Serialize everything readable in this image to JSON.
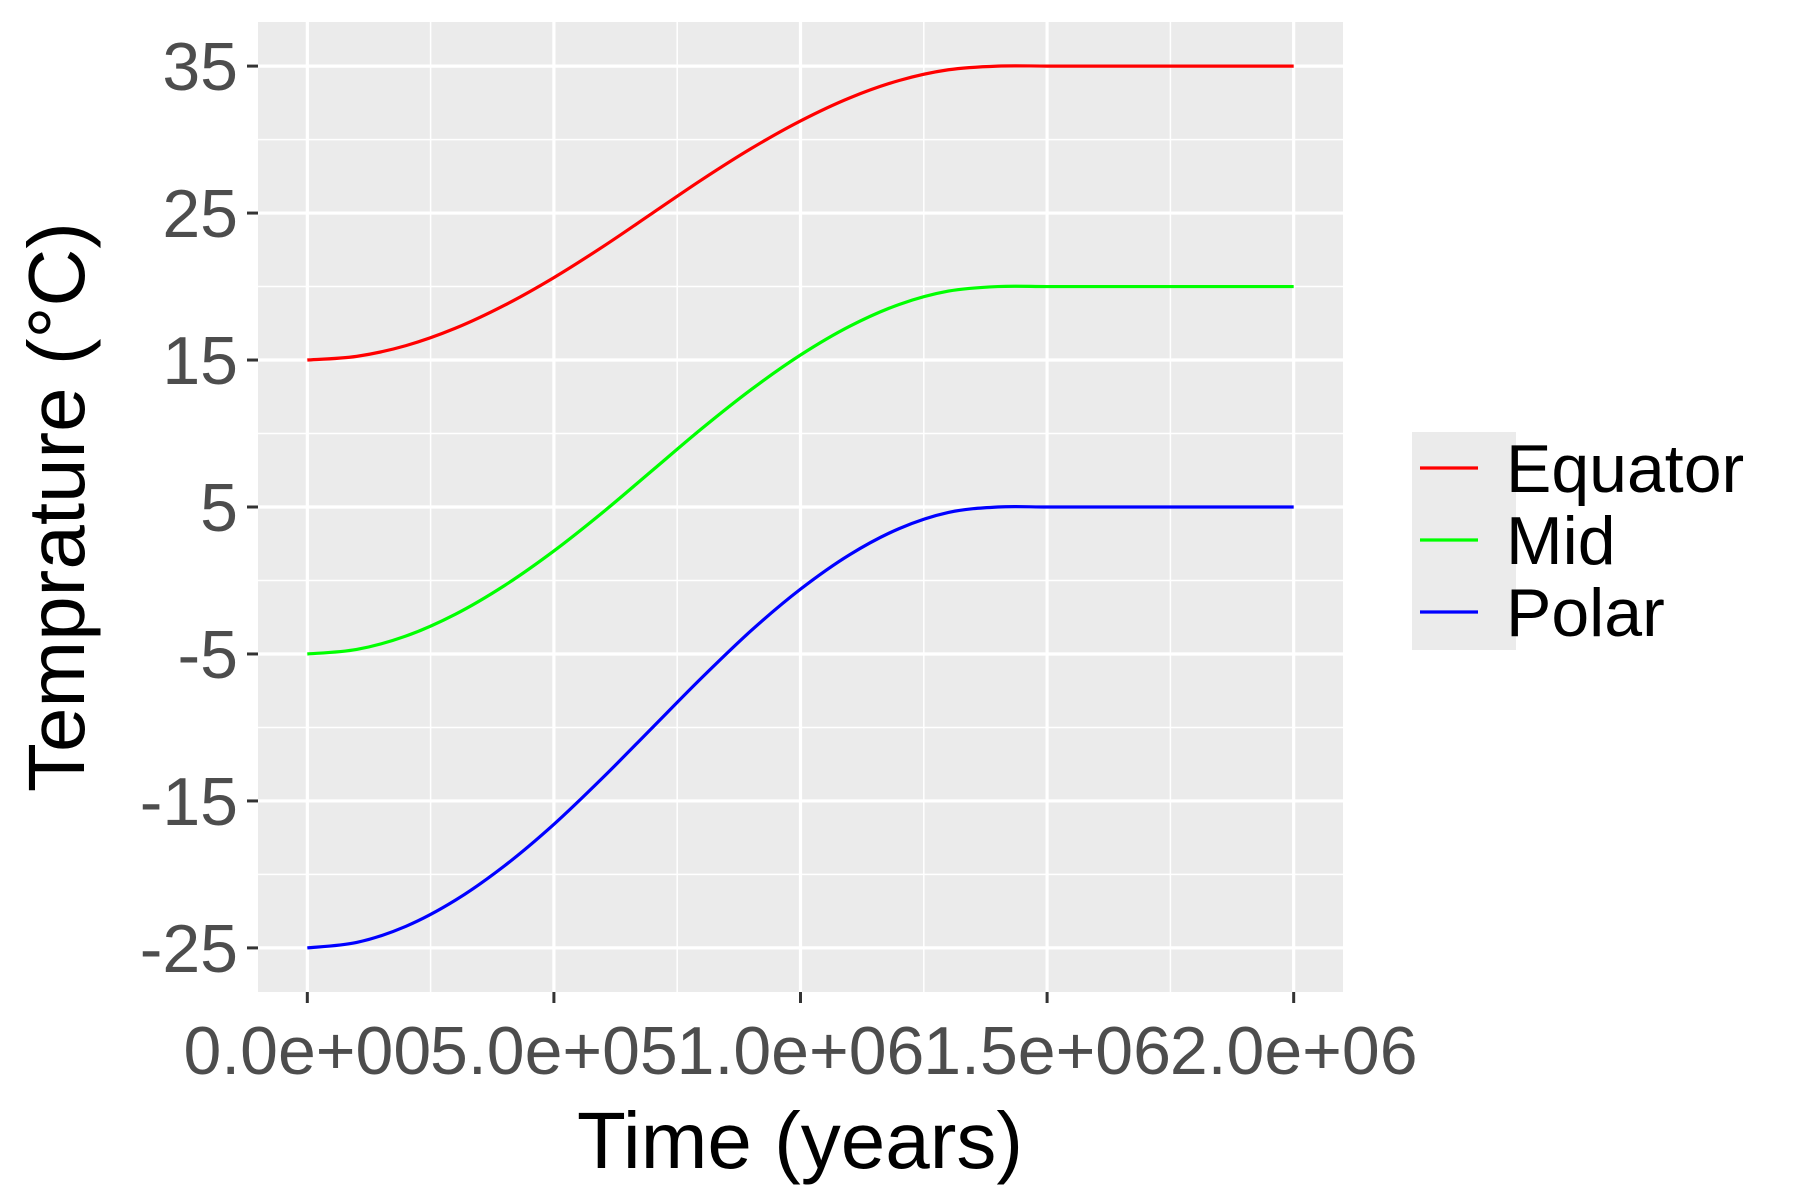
{
  "chart_data": {
    "type": "line",
    "xlabel": "Time (years)",
    "ylabel": "Temprature (°C)",
    "xlim": [
      -100000,
      2100000
    ],
    "ylim": [
      -28,
      38
    ],
    "x_ticks": [
      0,
      500000,
      1000000,
      1500000,
      2000000
    ],
    "x_tick_labels": [
      "0.0e+00",
      "5.0e+05",
      "1.0e+06",
      "1.5e+06",
      "2.0e+06"
    ],
    "y_ticks": [
      -25,
      -15,
      -5,
      5,
      15,
      25,
      35
    ],
    "y_tick_labels": [
      "-25",
      "-15",
      "-5",
      "5",
      "15",
      "25",
      "35"
    ],
    "grid": true,
    "panel_background": "#ebebeb",
    "legend_position": "right",
    "x": [
      0,
      100000,
      200000,
      300000,
      400000,
      500000,
      600000,
      700000,
      800000,
      900000,
      1000000,
      1100000,
      1200000,
      1300000,
      1400000,
      1500000,
      1600000,
      1700000,
      1800000,
      1900000,
      2000000
    ],
    "series": [
      {
        "name": "Equator",
        "color": "#ff0000",
        "values": [
          15.0,
          15.25,
          15.98,
          17.16,
          18.73,
          20.61,
          22.73,
          25.0,
          27.27,
          29.39,
          31.27,
          32.84,
          34.02,
          34.75,
          35.0,
          35.0,
          35.0,
          35.0,
          35.0,
          35.0,
          35.0
        ]
      },
      {
        "name": "Mid",
        "color": "#00ff00",
        "values": [
          -5.0,
          -4.69,
          -3.78,
          -2.3,
          -0.34,
          2.01,
          4.66,
          7.5,
          10.34,
          12.99,
          15.34,
          17.3,
          18.78,
          19.69,
          20.0,
          20.0,
          20.0,
          20.0,
          20.0,
          20.0,
          20.0
        ]
      },
      {
        "name": "Polar",
        "color": "#0000ff",
        "values": [
          -25.0,
          -24.63,
          -23.53,
          -21.76,
          -19.41,
          -16.59,
          -13.39,
          -10.0,
          -6.61,
          -3.41,
          -0.59,
          1.76,
          3.53,
          4.63,
          5.0,
          5.0,
          5.0,
          5.0,
          5.0,
          5.0,
          5.0
        ]
      }
    ]
  }
}
